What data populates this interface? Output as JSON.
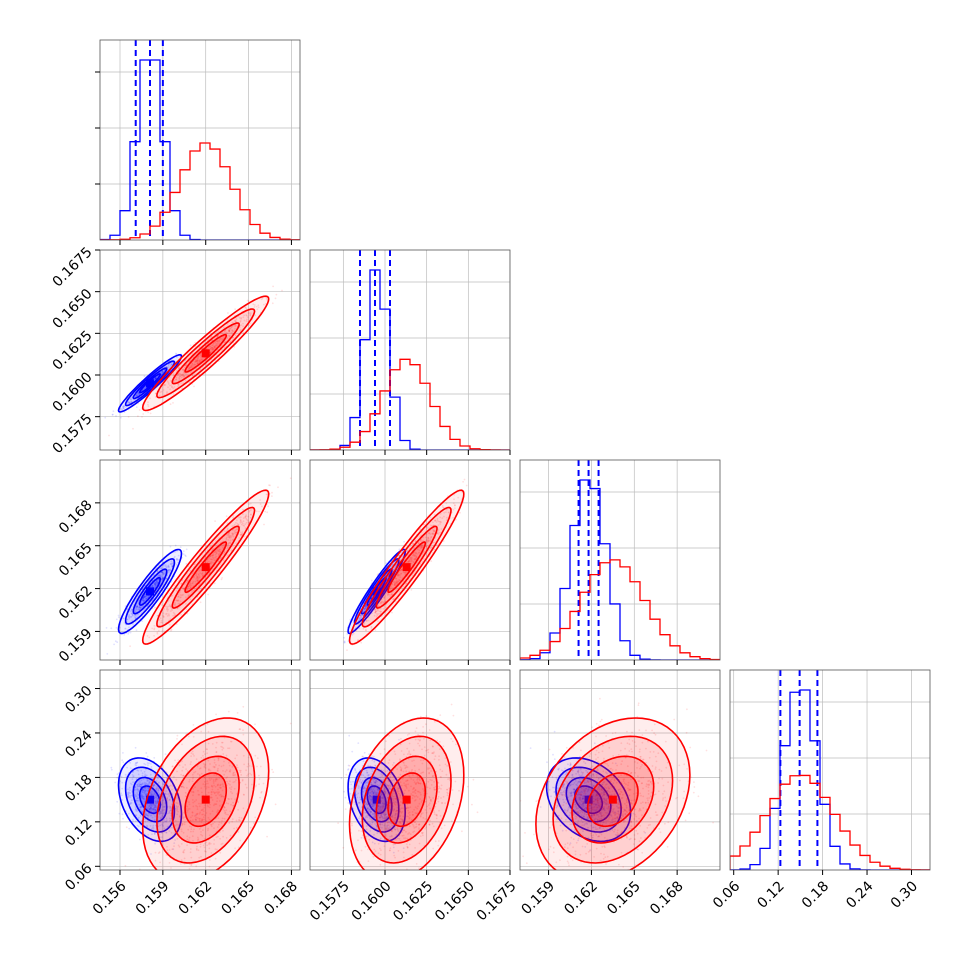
{
  "chart_data": {
    "type": "corner",
    "colors": {
      "blue": "#0000ff",
      "red": "#ff0000"
    },
    "grid": true,
    "parameters": [
      {
        "ticks": [
          0.156,
          0.159,
          0.162,
          0.165,
          0.168
        ],
        "tick_labels": [
          "0.156",
          "0.159",
          "0.162",
          "0.165",
          "0.168"
        ],
        "range": [
          0.1546,
          0.1686
        ]
      },
      {
        "ticks": [
          0.1575,
          0.16,
          0.1625,
          0.165,
          0.1675
        ],
        "tick_labels": [
          "0.1575",
          "0.1600",
          "0.1625",
          "0.1650",
          "0.1675"
        ],
        "range": [
          0.1555,
          0.1675
        ]
      },
      {
        "ticks": [
          0.159,
          0.162,
          0.165,
          0.168
        ],
        "tick_labels": [
          "0.159",
          "0.162",
          "0.165",
          "0.168"
        ],
        "range": [
          0.157,
          0.171
        ]
      },
      {
        "ticks": [
          0.06,
          0.12,
          0.18,
          0.24,
          0.3
        ],
        "tick_labels": [
          "0.06",
          "0.12",
          "0.18",
          "0.24",
          "0.30"
        ],
        "range": [
          0.055,
          0.325
        ]
      }
    ],
    "series": [
      {
        "name": "",
        "color": "#0000ff",
        "means": [
          0.1581,
          0.1595,
          0.1618,
          0.15
        ],
        "sds": [
          0.0009,
          0.0007,
          0.0012,
          0.023
        ],
        "correlations": {
          "1-0": 0.95,
          "2-0": 0.9,
          "2-1": 0.95,
          "3-0": -0.35,
          "3-1": -0.3,
          "3-2": -0.3
        },
        "quantiles": [
          [
            0.1571,
            0.1581,
            0.159
          ],
          [
            0.1585,
            0.1594,
            0.1603
          ],
          [
            0.1611,
            0.1618,
            0.1625
          ],
          [
            0.123,
            0.149,
            0.173
          ]
        ]
      },
      {
        "name": "",
        "color": "#ff0000",
        "means": [
          0.162,
          0.1613,
          0.1635,
          0.15
        ],
        "sds": [
          0.0018,
          0.0014,
          0.0022,
          0.045
        ],
        "correlations": {
          "1-0": 0.95,
          "2-0": 0.95,
          "2-1": 0.95,
          "3-0": 0.35,
          "3-1": 0.3,
          "3-2": 0.3
        }
      }
    ]
  }
}
